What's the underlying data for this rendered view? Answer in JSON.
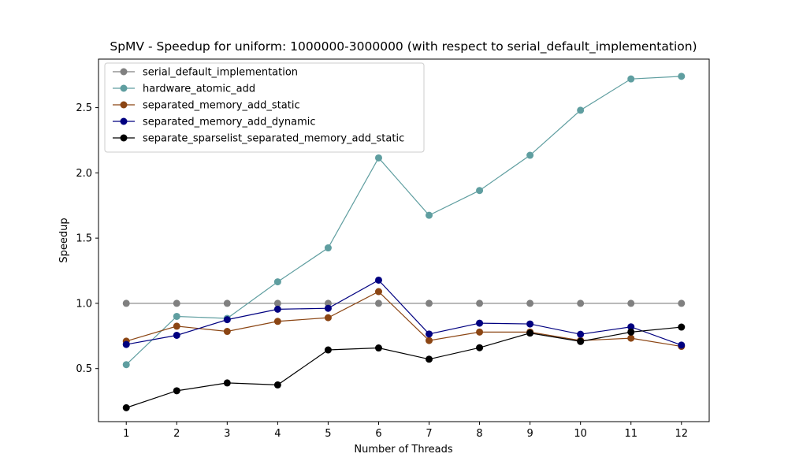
{
  "chart_data": {
    "type": "line",
    "title": "SpMV - Speedup for uniform: 1000000-3000000 (with respect to serial_default_implementation)",
    "xlabel": "Number of Threads",
    "ylabel": "Speedup",
    "x": [
      1,
      2,
      3,
      4,
      5,
      6,
      7,
      8,
      9,
      10,
      11,
      12
    ],
    "xticks": [
      "1",
      "2",
      "3",
      "4",
      "5",
      "6",
      "7",
      "8",
      "9",
      "10",
      "11",
      "12"
    ],
    "yticks": [
      0.5,
      1.0,
      1.5,
      2.0,
      2.5
    ],
    "ytick_labels": [
      "0.5",
      "1.0",
      "1.5",
      "2.0",
      "2.5"
    ],
    "xlim": [
      0.45,
      12.55
    ],
    "ylim": [
      0.0935,
      2.872
    ],
    "grid": false,
    "legend_position": "top-left",
    "series": [
      {
        "name": "serial_default_implementation",
        "color": "#808080",
        "values": [
          1.0,
          1.0,
          1.0,
          1.0,
          1.0,
          1.0,
          1.0,
          1.0,
          1.0,
          1.0,
          1.0,
          1.0
        ]
      },
      {
        "name": "hardware_atomic_add",
        "color": "#5f9ea0",
        "values": [
          0.53,
          0.9,
          0.885,
          1.165,
          1.425,
          2.115,
          1.675,
          1.865,
          2.135,
          2.48,
          2.72,
          2.74
        ]
      },
      {
        "name": "separated_memory_add_static",
        "color": "#8b4513",
        "values": [
          0.71,
          0.825,
          0.785,
          0.862,
          0.89,
          1.09,
          0.715,
          0.78,
          0.78,
          0.715,
          0.733,
          0.67
        ]
      },
      {
        "name": "separated_memory_add_dynamic",
        "color": "#000080",
        "values": [
          0.685,
          0.755,
          0.875,
          0.955,
          0.962,
          1.178,
          0.765,
          0.848,
          0.842,
          0.763,
          0.82,
          0.68
        ]
      },
      {
        "name": "separate_sparselist_separated_memory_add_static",
        "color": "#000000",
        "values": [
          0.2,
          0.33,
          0.39,
          0.375,
          0.643,
          0.658,
          0.572,
          0.66,
          0.772,
          0.708,
          0.78,
          0.818
        ]
      }
    ]
  }
}
